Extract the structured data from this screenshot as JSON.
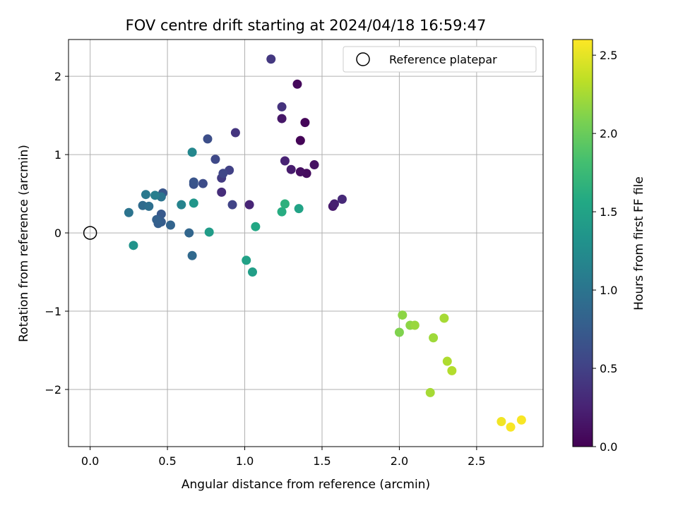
{
  "chart_data": {
    "type": "scatter",
    "title": "FOV centre drift starting at 2024/04/18 16:59:47",
    "xlabel": "Angular distance from reference (arcmin)",
    "ylabel": "Rotation from reference (arcmin)",
    "xlim": [
      -0.14,
      2.93
    ],
    "ylim": [
      -2.73,
      2.47
    ],
    "xticks": [
      0.0,
      0.5,
      1.0,
      1.5,
      2.0,
      2.5
    ],
    "xtick_labels": [
      "0.0",
      "0.5",
      "1.0",
      "1.5",
      "2.0",
      "2.5"
    ],
    "yticks": [
      -2,
      -1,
      0,
      1,
      2
    ],
    "ytick_labels": [
      "−2",
      "−1",
      "0",
      "1",
      "2"
    ],
    "grid": true,
    "legend": {
      "placement": "top-right",
      "entries": [
        "Reference platepar"
      ]
    },
    "reference_point": {
      "x": 0.0,
      "y": 0.0,
      "marker": "hollow-circle"
    },
    "colorbar": {
      "label": "Hours from first FF file",
      "colormap": "viridis",
      "range": [
        0.0,
        2.6
      ],
      "ticks": [
        0.0,
        0.5,
        1.0,
        1.5,
        2.0,
        2.5
      ],
      "tick_labels": [
        "0.0",
        "0.5",
        "1.0",
        "1.5",
        "2.0",
        "2.5"
      ]
    },
    "points": [
      {
        "x": 1.36,
        "y": 1.18,
        "t": 0.02
      },
      {
        "x": 1.39,
        "y": 1.41,
        "t": 0.04
      },
      {
        "x": 1.34,
        "y": 1.9,
        "t": 0.06
      },
      {
        "x": 1.4,
        "y": 0.76,
        "t": 0.08
      },
      {
        "x": 1.36,
        "y": 0.78,
        "t": 0.1
      },
      {
        "x": 1.45,
        "y": 0.87,
        "t": 0.12
      },
      {
        "x": 1.24,
        "y": 1.46,
        "t": 0.16
      },
      {
        "x": 1.57,
        "y": 0.34,
        "t": 0.18
      },
      {
        "x": 1.3,
        "y": 0.81,
        "t": 0.2
      },
      {
        "x": 1.58,
        "y": 0.37,
        "t": 0.22
      },
      {
        "x": 1.26,
        "y": 0.92,
        "t": 0.25
      },
      {
        "x": 1.03,
        "y": 0.36,
        "t": 0.27
      },
      {
        "x": 1.63,
        "y": 0.43,
        "t": 0.3
      },
      {
        "x": 0.85,
        "y": 0.52,
        "t": 0.33
      },
      {
        "x": 1.24,
        "y": 1.61,
        "t": 0.38
      },
      {
        "x": 0.94,
        "y": 1.28,
        "t": 0.4
      },
      {
        "x": 1.17,
        "y": 2.22,
        "t": 0.42
      },
      {
        "x": 0.85,
        "y": 0.7,
        "t": 0.45
      },
      {
        "x": 0.9,
        "y": 0.8,
        "t": 0.5
      },
      {
        "x": 0.92,
        "y": 0.36,
        "t": 0.52
      },
      {
        "x": 0.86,
        "y": 0.76,
        "t": 0.55
      },
      {
        "x": 0.81,
        "y": 0.94,
        "t": 0.57
      },
      {
        "x": 0.73,
        "y": 0.63,
        "t": 0.6
      },
      {
        "x": 0.76,
        "y": 1.2,
        "t": 0.62
      },
      {
        "x": 0.67,
        "y": 0.62,
        "t": 0.65
      },
      {
        "x": 0.67,
        "y": 0.65,
        "t": 0.68
      },
      {
        "x": 0.47,
        "y": 0.51,
        "t": 0.7
      },
      {
        "x": 0.46,
        "y": 0.24,
        "t": 0.72
      },
      {
        "x": 0.46,
        "y": 0.14,
        "t": 0.75
      },
      {
        "x": 0.44,
        "y": 0.12,
        "t": 0.78
      },
      {
        "x": 0.43,
        "y": 0.17,
        "t": 0.8
      },
      {
        "x": 0.52,
        "y": 0.1,
        "t": 0.83
      },
      {
        "x": 0.64,
        "y": 0.0,
        "t": 0.85
      },
      {
        "x": 0.66,
        "y": -0.29,
        "t": 0.88
      },
      {
        "x": 0.34,
        "y": 0.35,
        "t": 0.9
      },
      {
        "x": 0.38,
        "y": 0.34,
        "t": 0.95
      },
      {
        "x": 0.46,
        "y": 0.46,
        "t": 1.0
      },
      {
        "x": 0.25,
        "y": 0.26,
        "t": 1.0
      },
      {
        "x": 0.36,
        "y": 0.49,
        "t": 1.05
      },
      {
        "x": 0.42,
        "y": 0.48,
        "t": 1.1
      },
      {
        "x": 0.59,
        "y": 0.36,
        "t": 1.15
      },
      {
        "x": 0.66,
        "y": 1.03,
        "t": 1.2
      },
      {
        "x": 0.28,
        "y": -0.16,
        "t": 1.32
      },
      {
        "x": 0.67,
        "y": 0.38,
        "t": 1.36
      },
      {
        "x": 0.77,
        "y": 0.01,
        "t": 1.42
      },
      {
        "x": 1.05,
        "y": -0.5,
        "t": 1.45
      },
      {
        "x": 1.01,
        "y": -0.35,
        "t": 1.48
      },
      {
        "x": 1.35,
        "y": 0.31,
        "t": 1.5
      },
      {
        "x": 1.07,
        "y": 0.08,
        "t": 1.55
      },
      {
        "x": 1.24,
        "y": 0.27,
        "t": 1.6
      },
      {
        "x": 1.26,
        "y": 0.37,
        "t": 1.65
      },
      {
        "x": 2.0,
        "y": -1.27,
        "t": 2.1
      },
      {
        "x": 2.02,
        "y": -1.05,
        "t": 2.15
      },
      {
        "x": 2.07,
        "y": -1.18,
        "t": 2.15
      },
      {
        "x": 2.1,
        "y": -1.18,
        "t": 2.2
      },
      {
        "x": 2.22,
        "y": -1.34,
        "t": 2.22
      },
      {
        "x": 2.29,
        "y": -1.09,
        "t": 2.25
      },
      {
        "x": 2.2,
        "y": -2.04,
        "t": 2.25
      },
      {
        "x": 2.31,
        "y": -1.64,
        "t": 2.28
      },
      {
        "x": 2.34,
        "y": -1.76,
        "t": 2.3
      },
      {
        "x": 2.66,
        "y": -2.41,
        "t": 2.55
      },
      {
        "x": 2.72,
        "y": -2.48,
        "t": 2.58
      },
      {
        "x": 2.79,
        "y": -2.39,
        "t": 2.58
      }
    ]
  }
}
